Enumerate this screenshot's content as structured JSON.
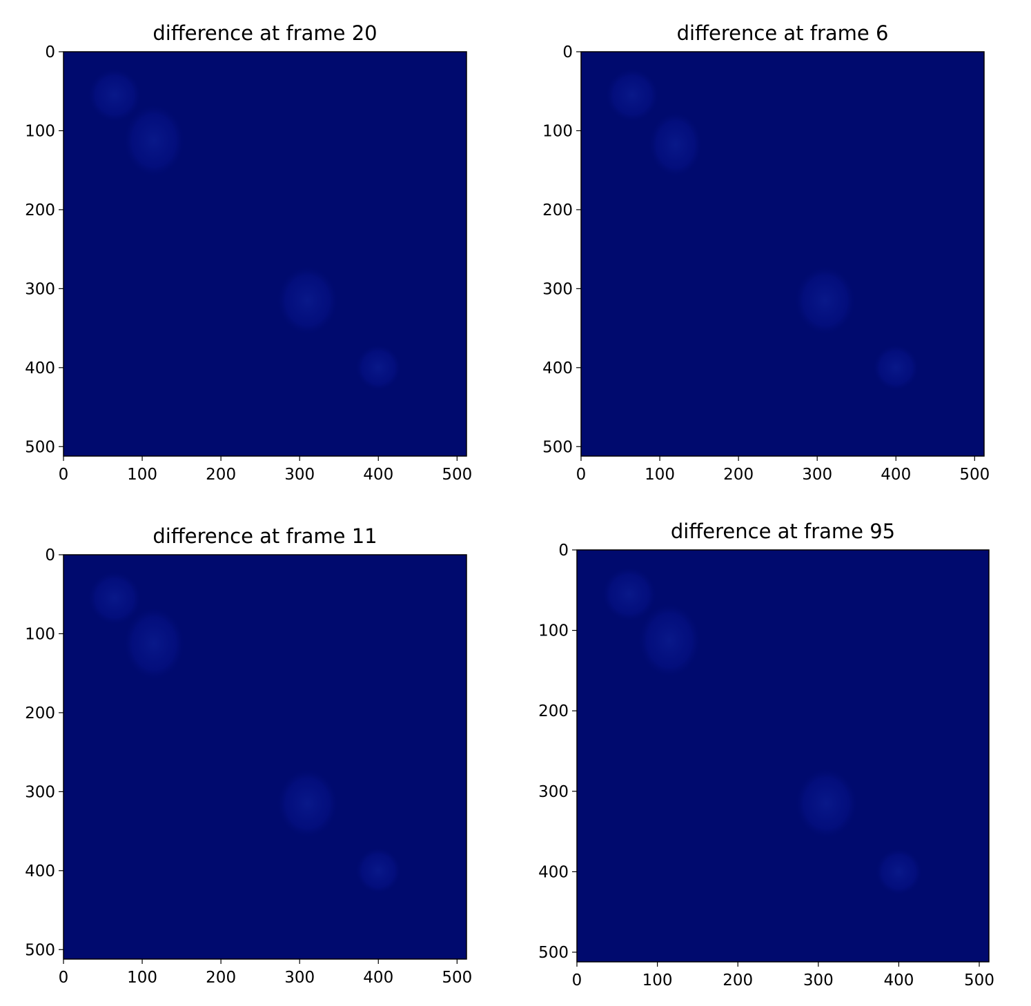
{
  "chart_data": [
    {
      "type": "heatmap",
      "title": "difference at frame 20",
      "x_ticks": [
        "0",
        "100",
        "200",
        "300",
        "400",
        "500"
      ],
      "y_ticks": [
        "0",
        "100",
        "200",
        "300",
        "400",
        "500"
      ],
      "xlim": [
        0,
        512
      ],
      "ylim": [
        512,
        0
      ],
      "colormap": "jet",
      "background_color": "#000a6e",
      "grid": false,
      "faint_blobs": [
        {
          "x": [
            30,
            100
          ],
          "y": [
            20,
            90
          ]
        },
        {
          "x": [
            75,
            155
          ],
          "y": [
            65,
            160
          ]
        },
        {
          "x": [
            270,
            350
          ],
          "y": [
            270,
            360
          ]
        },
        {
          "x": [
            370,
            430
          ],
          "y": [
            370,
            430
          ]
        }
      ]
    },
    {
      "type": "heatmap",
      "title": "difference at frame 6",
      "x_ticks": [
        "0",
        "100",
        "200",
        "300",
        "400",
        "500"
      ],
      "y_ticks": [
        "0",
        "100",
        "200",
        "300",
        "400",
        "500"
      ],
      "xlim": [
        0,
        512
      ],
      "ylim": [
        512,
        0
      ],
      "colormap": "jet",
      "background_color": "#000a6e",
      "grid": false,
      "faint_blobs": [
        {
          "x": [
            30,
            100
          ],
          "y": [
            20,
            90
          ]
        },
        {
          "x": [
            85,
            155
          ],
          "y": [
            75,
            160
          ]
        },
        {
          "x": [
            270,
            350
          ],
          "y": [
            270,
            360
          ]
        },
        {
          "x": [
            370,
            430
          ],
          "y": [
            370,
            430
          ]
        }
      ]
    },
    {
      "type": "heatmap",
      "title": "difference at frame 11",
      "x_ticks": [
        "0",
        "100",
        "200",
        "300",
        "400",
        "500"
      ],
      "y_ticks": [
        "0",
        "100",
        "200",
        "300",
        "400",
        "500"
      ],
      "xlim": [
        0,
        512
      ],
      "ylim": [
        512,
        0
      ],
      "colormap": "jet",
      "background_color": "#000a6e",
      "grid": false,
      "faint_blobs": [
        {
          "x": [
            30,
            100
          ],
          "y": [
            20,
            90
          ]
        },
        {
          "x": [
            75,
            155
          ],
          "y": [
            65,
            160
          ]
        },
        {
          "x": [
            270,
            350
          ],
          "y": [
            270,
            360
          ]
        },
        {
          "x": [
            370,
            430
          ],
          "y": [
            370,
            430
          ]
        }
      ]
    },
    {
      "type": "heatmap",
      "title": "difference at frame 95",
      "x_ticks": [
        "0",
        "100",
        "200",
        "300",
        "400",
        "500"
      ],
      "y_ticks": [
        "0",
        "100",
        "200",
        "300",
        "400",
        "500"
      ],
      "xlim": [
        0,
        512
      ],
      "ylim": [
        512,
        0
      ],
      "colormap": "jet",
      "background_color": "#000a6e",
      "grid": false,
      "faint_blobs": [
        {
          "x": [
            30,
            100
          ],
          "y": [
            20,
            90
          ]
        },
        {
          "x": [
            75,
            155
          ],
          "y": [
            65,
            160
          ]
        },
        {
          "x": [
            270,
            350
          ],
          "y": [
            270,
            360
          ]
        },
        {
          "x": [
            370,
            430
          ],
          "y": [
            370,
            430
          ]
        }
      ]
    }
  ]
}
